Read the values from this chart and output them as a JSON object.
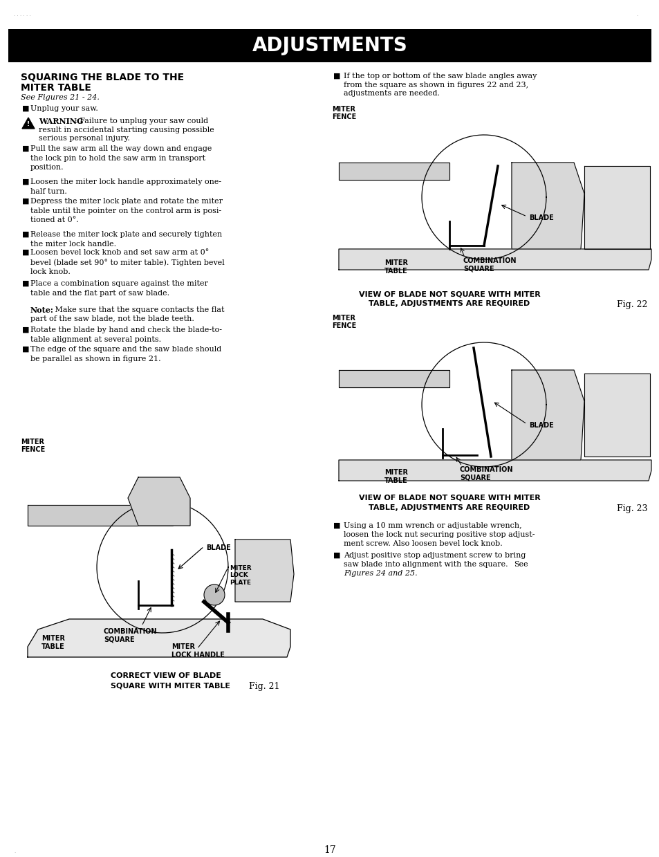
{
  "page_bg": "#ffffff",
  "header_bg": "#000000",
  "header_text": "ADJUSTMENTS",
  "header_text_color": "#ffffff",
  "header_fontsize": 20,
  "body_fontsize": 8.0,
  "caption_fontsize": 7.5,
  "fig_label_fontsize": 9.0,
  "page_number": "17",
  "fig21_caption_line1": "CORRECT VIEW OF BLADE",
  "fig21_caption_line2": "SQUARE WITH MITER TABLE",
  "fig21_label": "Fig. 21",
  "fig22_caption_line1": "VIEW OF BLADE NOT SQUARE WITH MITER",
  "fig22_caption_line2": "TABLE, ADJUSTMENTS ARE REQUIRED",
  "fig22_label": "Fig. 22",
  "fig23_caption_line1": "VIEW OF BLADE NOT SQUARE WITH MITER",
  "fig23_caption_line2": "TABLE, ADJUSTMENTS ARE REQUIRED",
  "fig23_label": "Fig. 23"
}
